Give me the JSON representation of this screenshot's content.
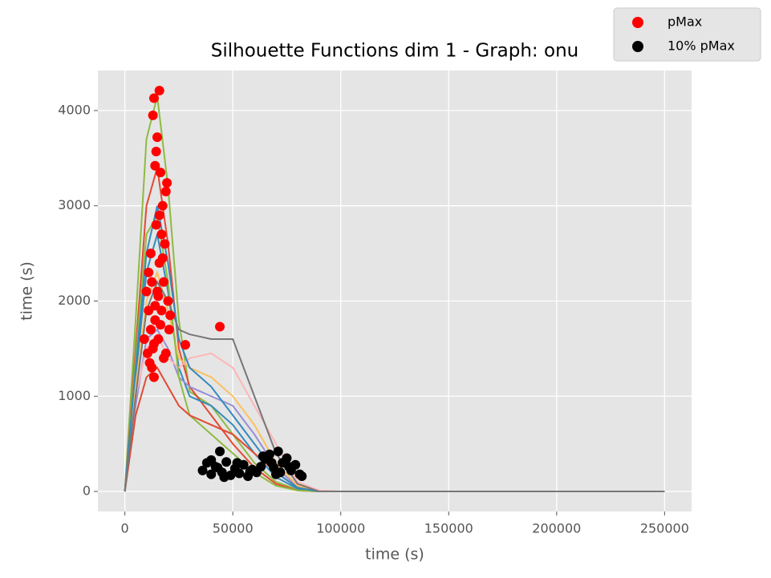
{
  "chart_data": {
    "type": "line",
    "title": "Silhouette Functions dim 1 - Graph:  onu",
    "x_label": "time (s)",
    "y_label": "time (s)",
    "xlim": [
      -12500,
      262500
    ],
    "ylim": [
      -210,
      4420
    ],
    "xticks": [
      0,
      50000,
      100000,
      150000,
      200000,
      250000
    ],
    "yticks": [
      0,
      1000,
      2000,
      3000,
      4000
    ],
    "grid": true,
    "legend": "upper right",
    "x": [
      0,
      5000,
      10000,
      15000,
      20000,
      25000,
      30000,
      40000,
      50000,
      60000,
      70000,
      80000,
      90000,
      100000,
      150000,
      200000,
      250000
    ],
    "series": [
      {
        "color": "#8EBA42",
        "values": [
          0,
          1800,
          3700,
          4150,
          3200,
          1800,
          1050,
          900,
          600,
          300,
          100,
          20,
          0,
          0,
          0,
          0,
          0
        ]
      },
      {
        "color": "#E24A33",
        "values": [
          0,
          1500,
          3000,
          3400,
          2600,
          1500,
          1100,
          800,
          500,
          250,
          80,
          10,
          0,
          0,
          0,
          0,
          0
        ]
      },
      {
        "color": "#348ABD",
        "values": [
          0,
          1200,
          2300,
          2700,
          2100,
          1300,
          1000,
          900,
          700,
          400,
          150,
          30,
          0,
          0,
          0,
          0,
          0
        ]
      },
      {
        "color": "#988ED5",
        "values": [
          0,
          900,
          1600,
          1700,
          1500,
          1200,
          1100,
          1000,
          900,
          600,
          250,
          50,
          0,
          0,
          0,
          0,
          0
        ]
      },
      {
        "color": "#FBC15E",
        "values": [
          0,
          1100,
          2000,
          2300,
          1900,
          1400,
          1300,
          1200,
          1000,
          700,
          300,
          60,
          0,
          0,
          0,
          0,
          0
        ]
      },
      {
        "color": "#FFB5B8",
        "values": [
          0,
          1000,
          1500,
          1650,
          1400,
          1300,
          1400,
          1450,
          1300,
          900,
          500,
          100,
          10,
          0,
          0,
          0,
          0
        ]
      },
      {
        "color": "#8EBA42",
        "values": [
          0,
          1400,
          2700,
          2900,
          2200,
          1200,
          800,
          600,
          400,
          200,
          60,
          10,
          0,
          0,
          0,
          0,
          0
        ]
      },
      {
        "color": "#E24A33",
        "values": [
          0,
          800,
          1200,
          1300,
          1100,
          900,
          800,
          700,
          600,
          400,
          200,
          40,
          0,
          0,
          0,
          0,
          0
        ]
      },
      {
        "color": "#348ABD",
        "values": [
          0,
          1300,
          2500,
          3000,
          2400,
          1600,
          1300,
          1100,
          800,
          500,
          200,
          40,
          0,
          0,
          0,
          0,
          0
        ]
      },
      {
        "color": "#777777",
        "values": [
          0,
          1000,
          1900,
          2200,
          2000,
          1700,
          1650,
          1600,
          1600,
          1000,
          400,
          80,
          0,
          0,
          0,
          0,
          0
        ]
      }
    ],
    "points": [
      {
        "name": "pMax",
        "color": "#FF0000",
        "x": [
          9000,
          10000,
          10500,
          11000,
          11500,
          12000,
          12000,
          12500,
          13000,
          13000,
          13500,
          14000,
          14000,
          14500,
          15000,
          15000,
          15500,
          16000,
          16000,
          16500,
          17000,
          17000,
          17500,
          18000,
          18000,
          18500,
          19000,
          19500,
          20000,
          20500,
          21000,
          11000,
          12500,
          14500,
          16500,
          13500,
          15500,
          17500,
          19000,
          14000,
          16000,
          13500,
          28000,
          44000
        ],
        "values": [
          1600,
          2100,
          1450,
          1900,
          1350,
          2500,
          1700,
          2200,
          3950,
          1500,
          4130,
          3420,
          1800,
          3570,
          2100,
          3720,
          1600,
          4210,
          2400,
          3350,
          2700,
          1900,
          3000,
          2200,
          1400,
          2600,
          3150,
          3240,
          2000,
          1700,
          1850,
          2300,
          1300,
          2800,
          1750,
          1550,
          2050,
          2450,
          1450,
          1950,
          2900,
          1200,
          1540,
          1730
        ]
      },
      {
        "name": "10% pMax",
        "color": "#000000",
        "x": [
          36000,
          38000,
          40000,
          42000,
          44000,
          45000,
          47000,
          49000,
          51000,
          53000,
          55000,
          57000,
          59000,
          61000,
          63000,
          65000,
          67000,
          69000,
          71000,
          73000,
          75000,
          77000,
          79000,
          81000,
          82000,
          40000,
          46000,
          52000,
          58000,
          64000,
          70000,
          76000,
          43000,
          68000,
          72000
        ],
        "values": [
          220,
          300,
          180,
          260,
          420,
          200,
          310,
          170,
          240,
          190,
          280,
          160,
          230,
          200,
          260,
          340,
          390,
          250,
          420,
          300,
          350,
          220,
          280,
          180,
          160,
          330,
          150,
          300,
          210,
          370,
          180,
          260,
          250,
          300,
          200
        ]
      }
    ]
  }
}
